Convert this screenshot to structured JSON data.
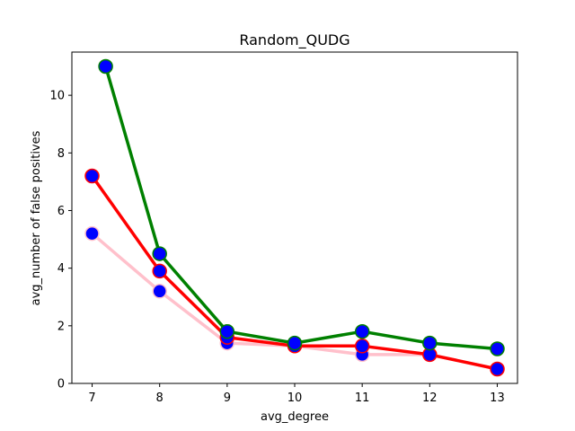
{
  "chart_data": {
    "type": "line",
    "title": "Random_QUDG",
    "xlabel": "avg_degree",
    "ylabel": "avg_number of false positives",
    "xlim": [
      6.7,
      13.3
    ],
    "ylim": [
      0,
      11.5
    ],
    "xticks": [
      7,
      8,
      9,
      10,
      11,
      12,
      13
    ],
    "yticks": [
      0,
      2,
      4,
      6,
      8,
      10
    ],
    "grid": false,
    "marker_color": "#0000ff",
    "series": [
      {
        "color": "#ffc0cb",
        "x": [
          7,
          8,
          9,
          10,
          11,
          12,
          13
        ],
        "y": [
          5.2,
          3.2,
          1.4,
          1.3,
          1.0,
          1.0,
          0.5
        ]
      },
      {
        "color": "#ff0000",
        "x": [
          7,
          8,
          9,
          10,
          11,
          12,
          13
        ],
        "y": [
          7.2,
          3.9,
          1.6,
          1.3,
          1.3,
          1.0,
          0.5
        ]
      },
      {
        "color": "#008000",
        "x": [
          7.2,
          8,
          9,
          10,
          11,
          12,
          13
        ],
        "y": [
          11.0,
          4.5,
          1.8,
          1.4,
          1.8,
          1.4,
          1.2
        ]
      }
    ]
  }
}
